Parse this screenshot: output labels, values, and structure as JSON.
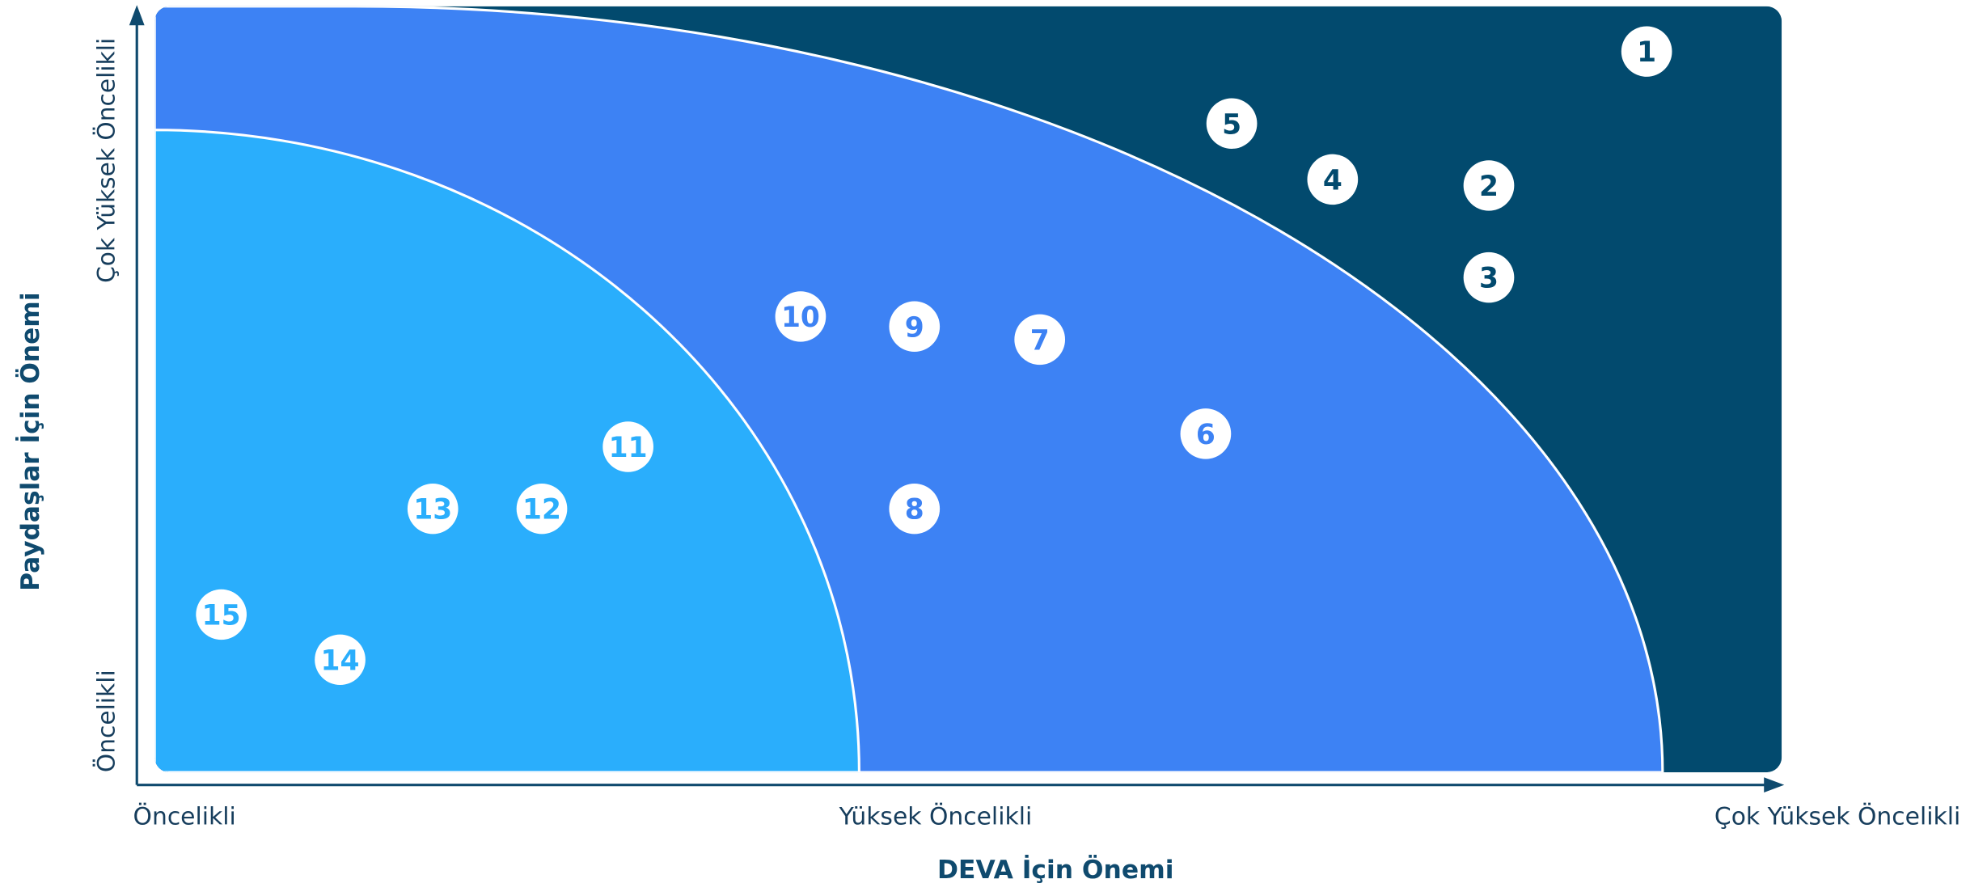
{
  "chart_data": {
    "type": "scatter",
    "xlabel": "DEVA İçin Önemi",
    "ylabel": "Paydaşlar İçin Önemi",
    "labels": [
      "1",
      "2",
      "3",
      "4",
      "5",
      "6",
      "7",
      "8",
      "9",
      "10",
      "11",
      "12",
      "13",
      "14",
      "15"
    ],
    "x": [
      91.7,
      82.0,
      82.0,
      72.4,
      66.2,
      64.6,
      54.4,
      46.7,
      46.7,
      39.7,
      29.1,
      23.8,
      17.1,
      11.4,
      4.1
    ],
    "y": [
      94.1,
      76.6,
      64.6,
      77.4,
      84.7,
      44.2,
      56.5,
      34.4,
      58.2,
      59.5,
      42.5,
      34.4,
      34.4,
      14.7,
      20.6
    ],
    "xlim": [
      0,
      100
    ],
    "ylim": [
      0,
      100
    ],
    "xticks": [
      {
        "value": 0,
        "label": "Öncelikli"
      },
      {
        "value": 48,
        "label": "Yüksek Öncelikli"
      },
      {
        "value": 100,
        "label": "Çok Yüksek Öncelikli"
      }
    ],
    "yticks": [
      {
        "value": 0,
        "label": "Öncelikli"
      },
      {
        "value": 100,
        "label": "Çok Yüksek Öncelikli"
      }
    ]
  }
}
